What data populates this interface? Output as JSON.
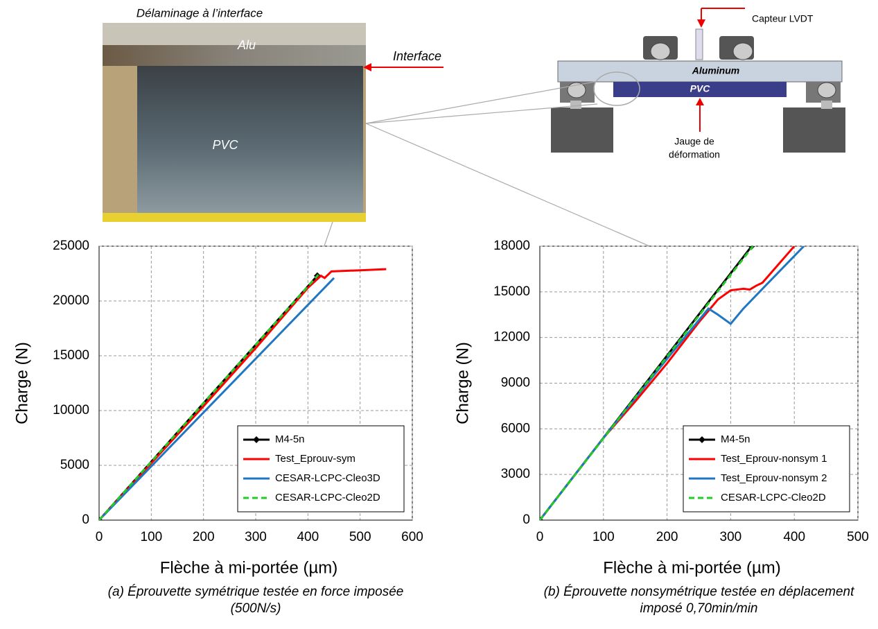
{
  "photo": {
    "title": "Délaminage à l’interface",
    "labels": [
      "Alu",
      "Interface",
      "PVC"
    ]
  },
  "diagram": {
    "labels": [
      "Capteur LVDT",
      "Aluminum",
      "PVC"
    ],
    "gauge": [
      "Jauge de",
      "déformation"
    ]
  },
  "chart_data": [
    {
      "type": "line",
      "xlabel": "Flèche à mi-portée (µm)",
      "ylabel": "Charge (N)",
      "caption": "(a) Éprouvette symétrique testée en force imposée (500N/s)",
      "xlim": [
        0,
        600
      ],
      "xticks": [
        0,
        100,
        200,
        300,
        400,
        500,
        600
      ],
      "ylim": [
        0,
        25000
      ],
      "yticks": [
        0,
        5000,
        10000,
        15000,
        20000,
        25000
      ],
      "grid": true,
      "legend": "lower right",
      "series": [
        {
          "name": "M4-5n",
          "color": "#000000",
          "marker": "diamond",
          "x": [
            0,
            418
          ],
          "values": [
            0,
            22300
          ]
        },
        {
          "name": "Test_Eprouv-sym",
          "color": "#ff0000",
          "x": [
            0,
            100,
            200,
            300,
            400,
            425,
            432,
            445,
            500,
            550
          ],
          "values": [
            0,
            5200,
            10400,
            15700,
            21200,
            22300,
            22100,
            22700,
            22800,
            22900
          ]
        },
        {
          "name": "CESAR-LCPC-Cleo3D",
          "color": "#1f77c4",
          "x": [
            0,
            450
          ],
          "values": [
            0,
            22100
          ]
        },
        {
          "name": "CESAR-LCPC-Cleo2D",
          "color": "#22cc22",
          "dash": true,
          "x": [
            0,
            420
          ],
          "values": [
            0,
            22400
          ]
        }
      ]
    },
    {
      "type": "line",
      "xlabel": "Flèche à mi-portée (µm)",
      "ylabel": "Charge (N)",
      "caption": "(b) Éprouvette nonsymétrique testée en déplacement imposé 0,70min/min",
      "xlim": [
        0,
        500
      ],
      "xticks": [
        0,
        100,
        200,
        300,
        400,
        500
      ],
      "ylim": [
        0,
        18000
      ],
      "yticks": [
        0,
        3000,
        6000,
        9000,
        12000,
        15000,
        18000
      ],
      "grid": true,
      "legend": "lower right",
      "series": [
        {
          "name": "M4-5n",
          "color": "#000000",
          "marker": "diamond",
          "x": [
            0,
            333
          ],
          "values": [
            0,
            18000
          ]
        },
        {
          "name": "Test_Eprouv-nonsym 1",
          "color": "#ff0000",
          "x": [
            0,
            100,
            150,
            200,
            250,
            280,
            300,
            320,
            330,
            340,
            350,
            400
          ],
          "values": [
            0,
            5400,
            7800,
            10300,
            13000,
            14500,
            15100,
            15200,
            15150,
            15400,
            15600,
            18000
          ]
        },
        {
          "name": "Test_Eprouv-nonsym 2",
          "color": "#1f77c4",
          "x": [
            0,
            100,
            200,
            265,
            280,
            300,
            320,
            350,
            415
          ],
          "values": [
            0,
            5400,
            10600,
            13900,
            13500,
            12900,
            13900,
            15200,
            18000
          ]
        },
        {
          "name": "CESAR-LCPC-Cleo2D",
          "color": "#22cc22",
          "dash": true,
          "x": [
            0,
            335
          ],
          "values": [
            0,
            18000
          ]
        }
      ]
    }
  ]
}
